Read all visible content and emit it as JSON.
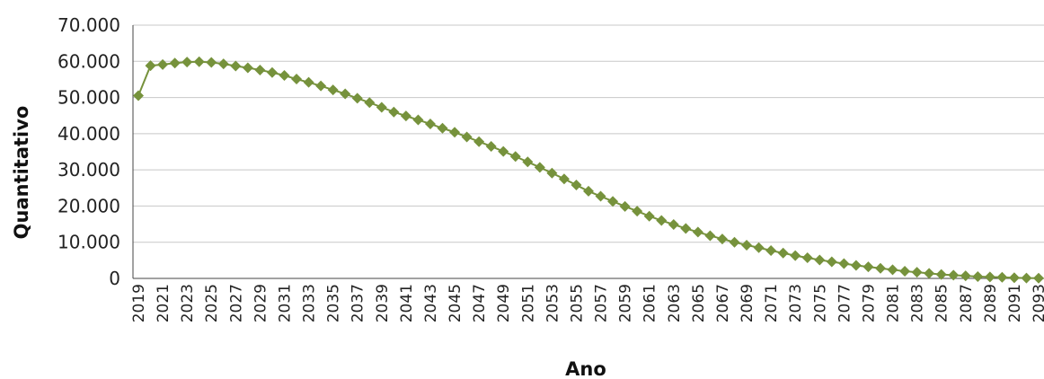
{
  "chart_data": {
    "type": "line",
    "title": "",
    "xlabel": "Ano",
    "ylabel": "Quantitativo",
    "ylim": [
      0,
      70000
    ],
    "y_ticks": [
      0,
      10000,
      20000,
      30000,
      40000,
      50000,
      60000,
      70000
    ],
    "y_tick_labels": [
      "0",
      "10.000",
      "20.000",
      "30.000",
      "40.000",
      "50.000",
      "60.000",
      "70.000"
    ],
    "x_tick_labels": [
      "2019",
      "2021",
      "2023",
      "2025",
      "2027",
      "2029",
      "2031",
      "2033",
      "2035",
      "2037",
      "2039",
      "2041",
      "2043",
      "2045",
      "2047",
      "2049",
      "2051",
      "2053",
      "2055",
      "2057",
      "2059",
      "2061",
      "2063",
      "2065",
      "2067",
      "2069",
      "2071",
      "2073",
      "2075",
      "2077",
      "2079",
      "2081",
      "2083",
      "2085",
      "2087",
      "2089",
      "2091",
      "2093"
    ],
    "grid": "horizontal",
    "legend": "none",
    "series_color": "#76923c",
    "x": [
      2019,
      2020,
      2021,
      2022,
      2023,
      2024,
      2025,
      2026,
      2027,
      2028,
      2029,
      2030,
      2031,
      2032,
      2033,
      2034,
      2035,
      2036,
      2037,
      2038,
      2039,
      2040,
      2041,
      2042,
      2043,
      2044,
      2045,
      2046,
      2047,
      2048,
      2049,
      2050,
      2051,
      2052,
      2053,
      2054,
      2055,
      2056,
      2057,
      2058,
      2059,
      2060,
      2061,
      2062,
      2063,
      2064,
      2065,
      2066,
      2067,
      2068,
      2069,
      2070,
      2071,
      2072,
      2073,
      2074,
      2075,
      2076,
      2077,
      2078,
      2079,
      2080,
      2081,
      2082,
      2083,
      2084,
      2085,
      2086,
      2087,
      2088,
      2089,
      2090,
      2091,
      2092,
      2093
    ],
    "series": [
      {
        "values": [
          50500,
          58800,
          59100,
          59500,
          59800,
          59900,
          59700,
          59300,
          58700,
          58200,
          57600,
          56900,
          56100,
          55100,
          54200,
          53200,
          52100,
          51000,
          49800,
          48600,
          47300,
          46000,
          44900,
          43800,
          42700,
          41500,
          40400,
          39100,
          37800,
          36500,
          35100,
          33700,
          32200,
          30700,
          29100,
          27500,
          25800,
          24100,
          22700,
          21300,
          19900,
          18600,
          17200,
          16000,
          14900,
          13800,
          12800,
          11800,
          10900,
          10000,
          9200,
          8500,
          7700,
          7000,
          6300,
          5700,
          5100,
          4600,
          4100,
          3600,
          3200,
          2800,
          2400,
          2000,
          1700,
          1400,
          1100,
          900,
          700,
          500,
          400,
          300,
          200,
          100,
          50
        ]
      }
    ]
  }
}
